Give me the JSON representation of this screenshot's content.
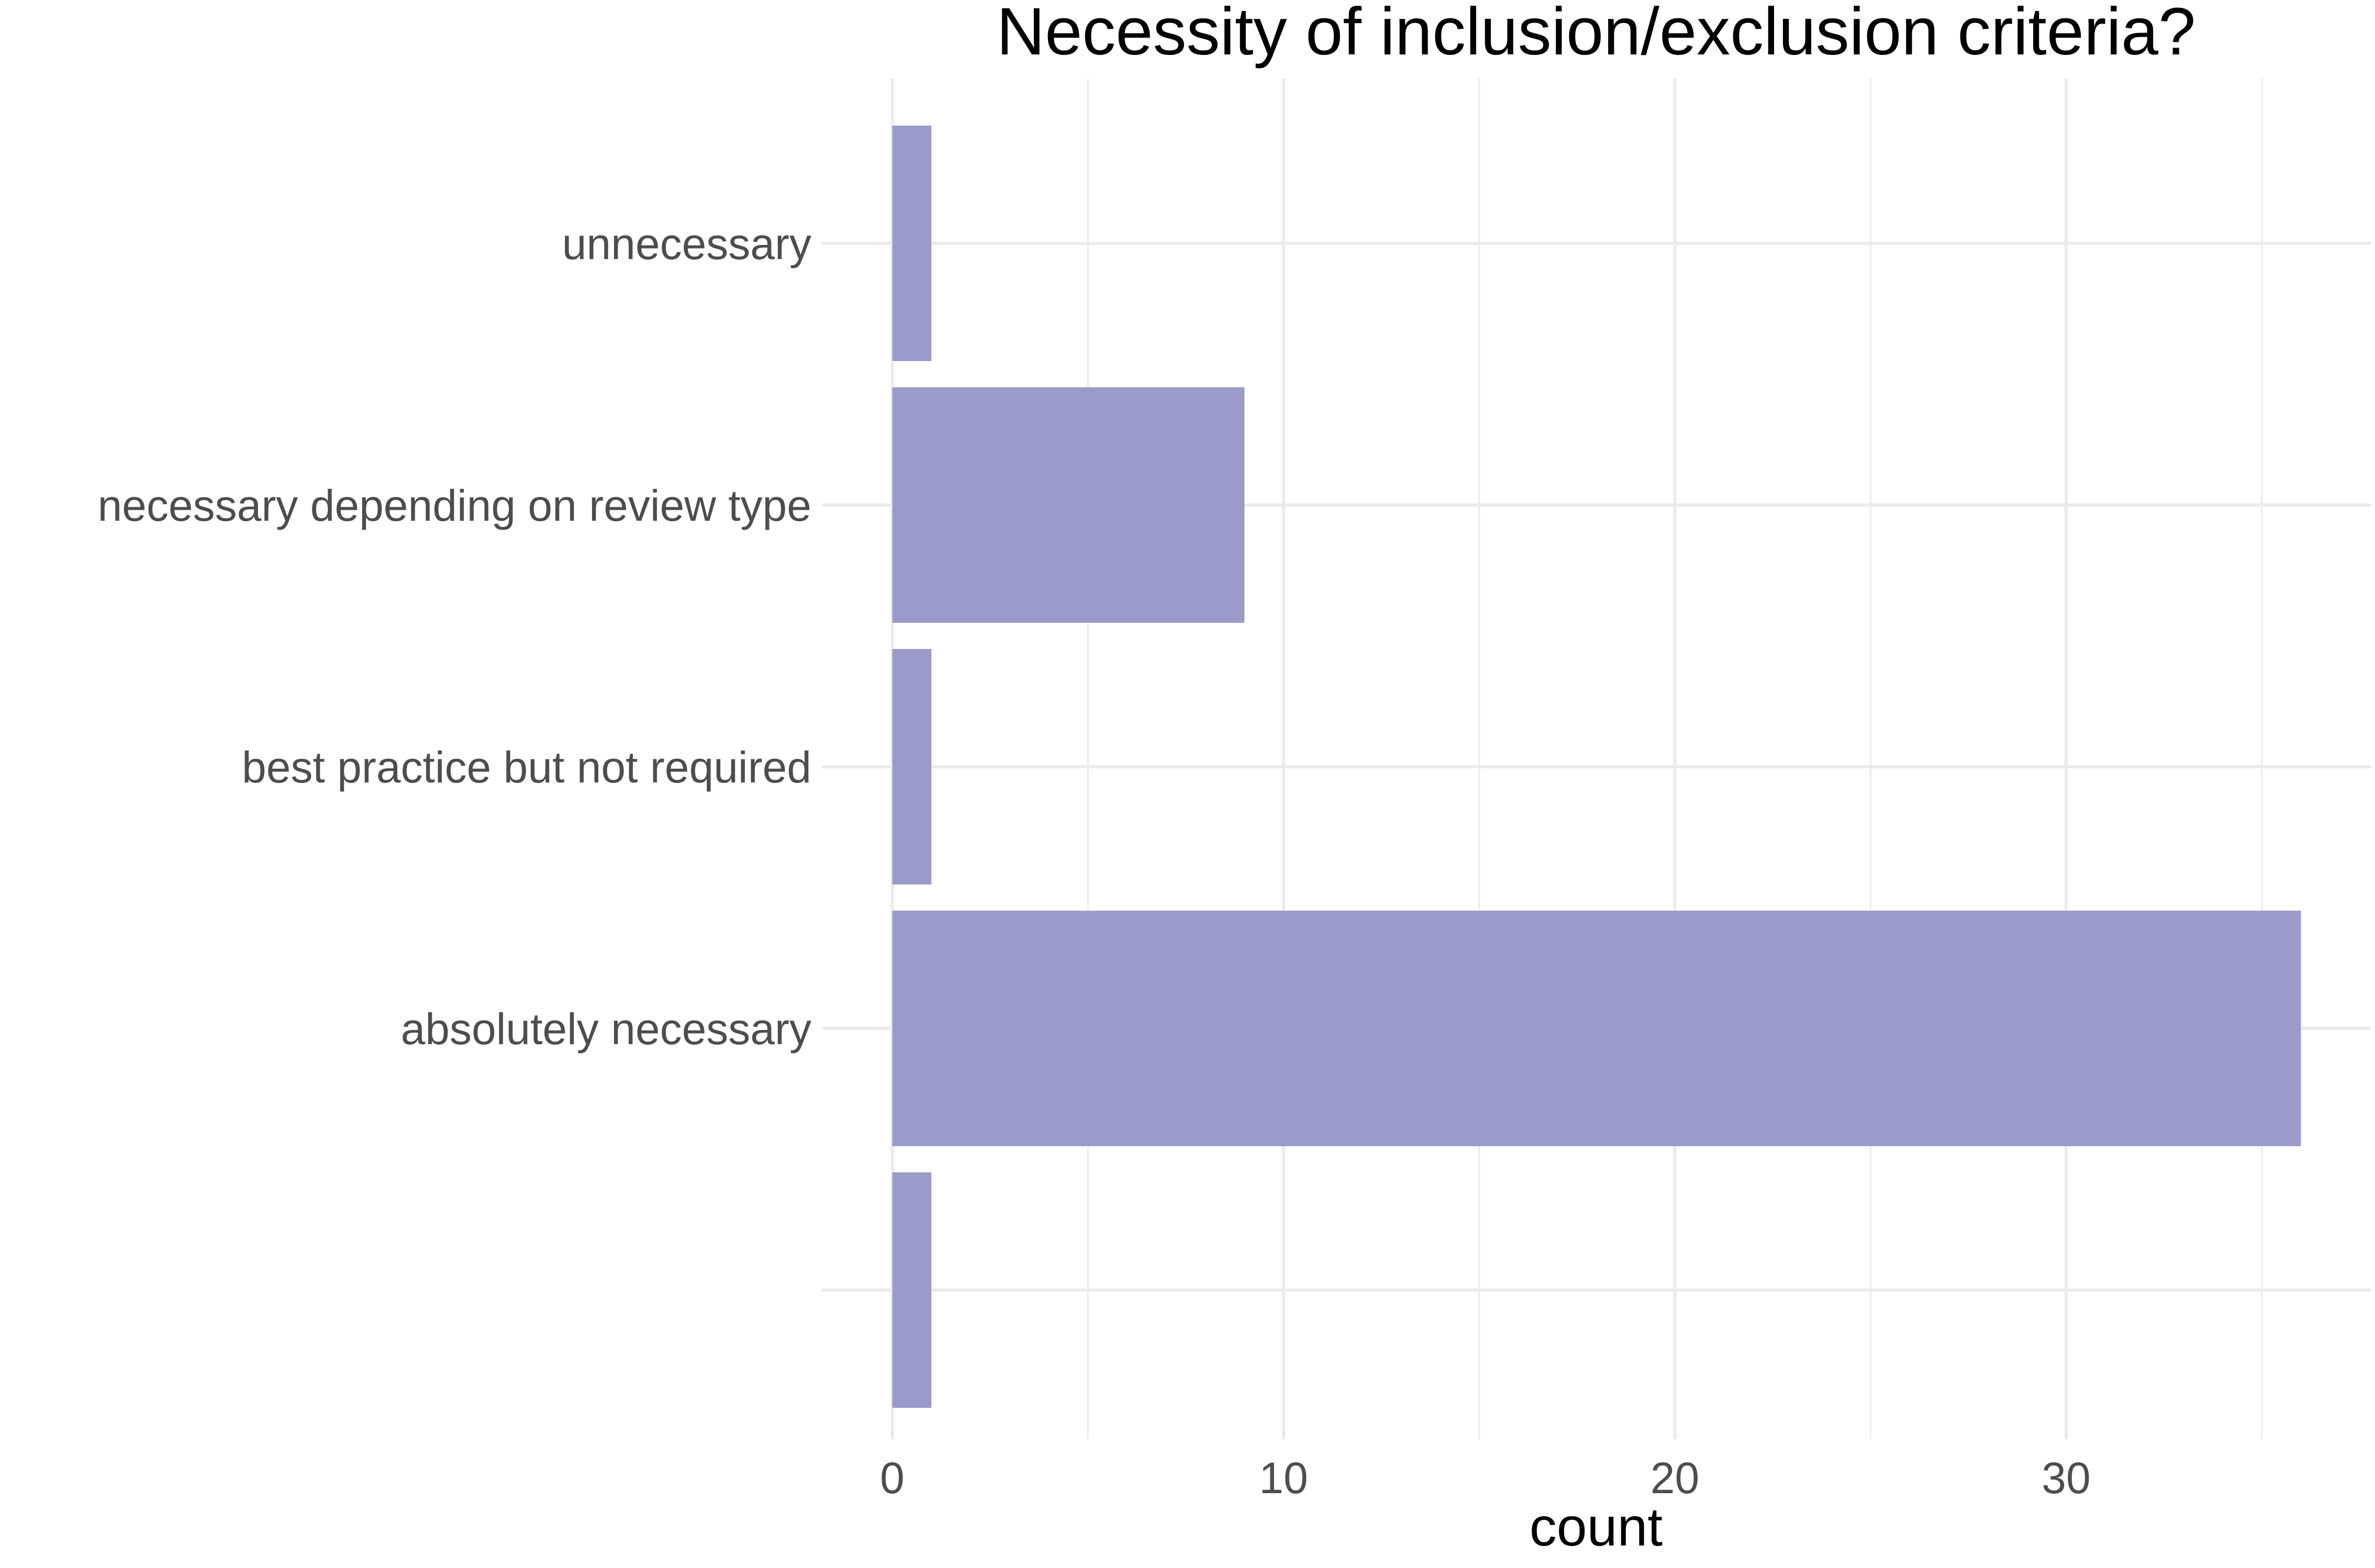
{
  "chart_data": {
    "type": "bar",
    "orientation": "horizontal",
    "title": "Necessity of inclusion/exclusion criteria?",
    "xlabel": "count",
    "ylabel": "",
    "categories": [
      "",
      "absolutely necessary",
      "best practice but not required",
      "necessary depending on review type",
      "unnecessary"
    ],
    "values": [
      1,
      36,
      1,
      9,
      1
    ],
    "xlim": [
      -1.8,
      37.8
    ],
    "x_ticks": [
      0,
      10,
      20,
      30
    ],
    "x_minor_ticks": [
      5,
      15,
      25,
      35
    ],
    "grid": true,
    "legend": "none",
    "bar_color": "#9a9acb",
    "grid_color": "#ebebeb",
    "text_color": "#4d4d4d",
    "title_color": "#000000"
  }
}
